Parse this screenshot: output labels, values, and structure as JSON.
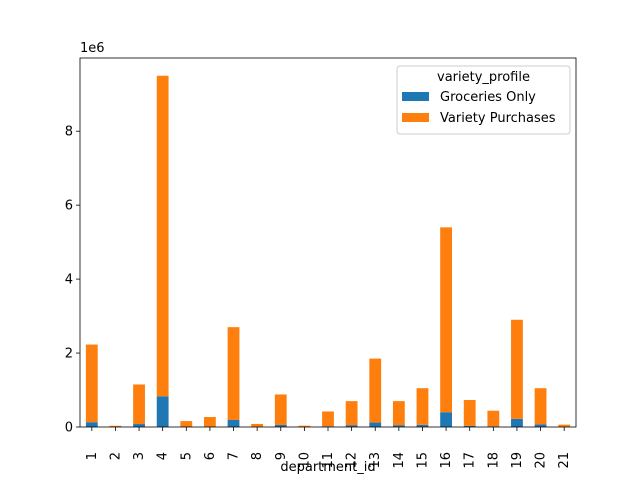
{
  "chart_data": {
    "type": "bar",
    "stacked": true,
    "categories": [
      "1",
      "2",
      "3",
      "4",
      "5",
      "6",
      "7",
      "8",
      "9",
      "10",
      "11",
      "12",
      "13",
      "14",
      "15",
      "16",
      "17",
      "18",
      "19",
      "20",
      "21"
    ],
    "series": [
      {
        "name": "Groceries Only",
        "color": "#1f77b4",
        "values": [
          130000,
          3000,
          80000,
          830000,
          10000,
          10000,
          190000,
          3000,
          55000,
          3000,
          20000,
          50000,
          120000,
          50000,
          60000,
          400000,
          30000,
          20000,
          220000,
          70000,
          3000
        ]
      },
      {
        "name": "Variety Purchases",
        "color": "#ff7f0e",
        "values": [
          2100000,
          30000,
          1070000,
          8670000,
          150000,
          260000,
          2510000,
          80000,
          825000,
          32000,
          400000,
          650000,
          1730000,
          650000,
          990000,
          5000000,
          700000,
          420000,
          2680000,
          980000,
          60000
        ]
      }
    ],
    "xlabel": "department_id",
    "ylabel": "",
    "y_offset_label": "1e6",
    "yticks": [
      0,
      2000000,
      4000000,
      6000000,
      8000000
    ],
    "ytick_labels": [
      "0",
      "2",
      "4",
      "6",
      "8"
    ],
    "ylim": [
      0,
      9980000
    ],
    "legend": {
      "title": "variety_profile",
      "placement": "top-right"
    },
    "grid": false
  }
}
